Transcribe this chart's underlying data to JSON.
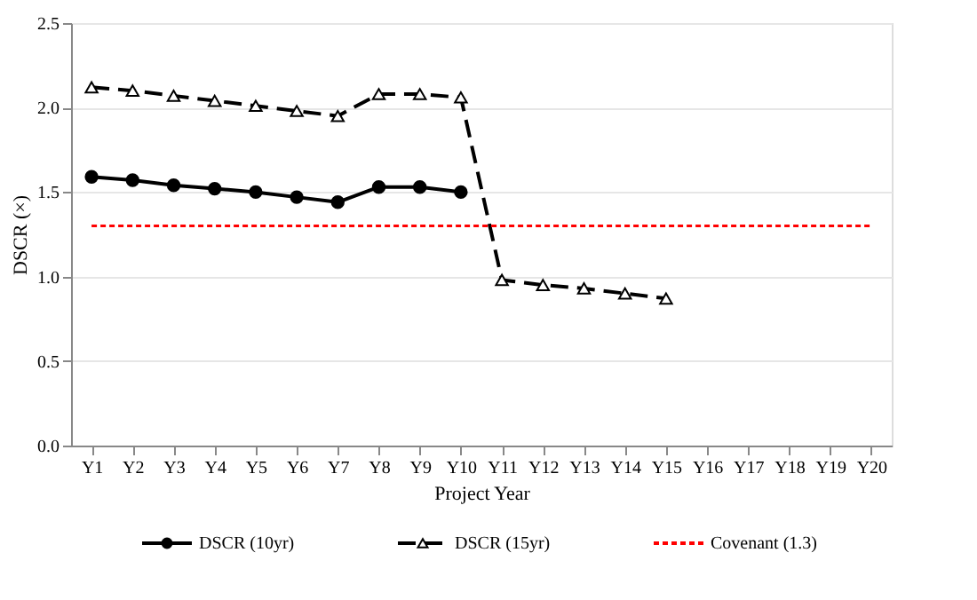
{
  "chart_data": {
    "type": "line",
    "xlabel": "Project Year",
    "ylabel": "DSCR (×)",
    "categories": [
      "Y1",
      "Y2",
      "Y3",
      "Y4",
      "Y5",
      "Y6",
      "Y7",
      "Y8",
      "Y9",
      "Y10",
      "Y11",
      "Y12",
      "Y13",
      "Y14",
      "Y15",
      "Y16",
      "Y17",
      "Y18",
      "Y19",
      "Y20"
    ],
    "series": [
      {
        "name": "DSCR (10yr)",
        "color": "#000000",
        "marker": "circle",
        "line_style": "solid",
        "values": [
          1.59,
          1.57,
          1.54,
          1.52,
          1.5,
          1.47,
          1.44,
          1.53,
          1.53,
          1.5,
          null,
          null,
          null,
          null,
          null,
          null,
          null,
          null,
          null,
          null
        ]
      },
      {
        "name": "DSCR (15yr)",
        "color": "#000000",
        "marker": "triangle",
        "line_style": "dashed",
        "values": [
          2.12,
          2.1,
          2.07,
          2.04,
          2.01,
          1.98,
          1.95,
          2.08,
          2.08,
          2.06,
          0.98,
          0.95,
          0.93,
          0.9,
          0.87,
          null,
          null,
          null,
          null,
          null
        ]
      }
    ],
    "ref_lines": [
      {
        "axis": "y",
        "value": 1.3,
        "label": "Covenant (1.3)",
        "color": "#ff0000",
        "line_style": "dotted"
      }
    ],
    "ylim": [
      0,
      2.5
    ],
    "yticks": [
      {
        "value": 0,
        "label": "0.0"
      },
      {
        "value": 0.5,
        "label": "0.5"
      },
      {
        "value": 1,
        "label": "1.0"
      },
      {
        "value": 1.5,
        "label": "1.5"
      },
      {
        "value": 2,
        "label": "2.0"
      },
      {
        "value": 2.5,
        "label": "2.5"
      }
    ],
    "grid": "y",
    "legend": "bottom"
  }
}
